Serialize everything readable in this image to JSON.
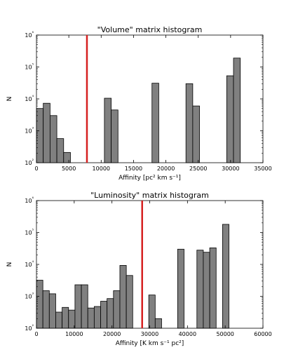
{
  "chart_data": [
    {
      "type": "bar",
      "title": "\"Volume\" matrix histogram",
      "xlabel": "Affinity [pc² km s⁻¹]",
      "ylabel": "N",
      "xlim": [
        0,
        35000
      ],
      "ylim": [
        100,
        1000000
      ],
      "yscale": "log",
      "x_ticks": [
        "0",
        "5000",
        "10000",
        "15000",
        "20000",
        "25000",
        "30000",
        "35000"
      ],
      "y_ticks": [
        "10²",
        "10³",
        "10⁴",
        "10⁵",
        "10⁶"
      ],
      "bin_width": 1050,
      "bins_left": [
        0,
        1050,
        2100,
        3150,
        4200,
        10500,
        11550,
        17850,
        23100,
        24150,
        29400,
        30450
      ],
      "values": [
        5000,
        7300,
        3000,
        570,
        210,
        10500,
        4500,
        31000,
        30000,
        6000,
        53000,
        190000
      ],
      "threshold": 7800,
      "bar_color": "#808080",
      "threshold_color": "#d62020"
    },
    {
      "type": "bar",
      "title": "\"Luminosity\" matrix histogram",
      "xlabel": "Affinity [K km s⁻¹ pc²]",
      "ylabel": "N",
      "xlim": [
        0,
        60000
      ],
      "ylim": [
        100,
        1000000
      ],
      "yscale": "log",
      "x_ticks": [
        "0",
        "10000",
        "20000",
        "30000",
        "40000",
        "50000",
        "60000"
      ],
      "y_ticks": [
        "10²",
        "10³",
        "10⁴",
        "10⁵",
        "10⁶"
      ],
      "bin_width": 1700,
      "bins_left": [
        0,
        1700,
        3400,
        5100,
        6800,
        8500,
        10200,
        11900,
        13600,
        15300,
        17000,
        18700,
        20400,
        22100,
        23800,
        29750,
        31450,
        37400,
        42500,
        44200,
        45900,
        49300
      ],
      "values": [
        3200,
        1500,
        1200,
        320,
        450,
        370,
        2300,
        2300,
        430,
        480,
        700,
        850,
        1500,
        9300,
        4500,
        1100,
        200,
        30000,
        28000,
        24000,
        33000,
        180000
      ],
      "threshold": 28000,
      "bar_color": "#808080",
      "threshold_color": "#d62020"
    }
  ]
}
